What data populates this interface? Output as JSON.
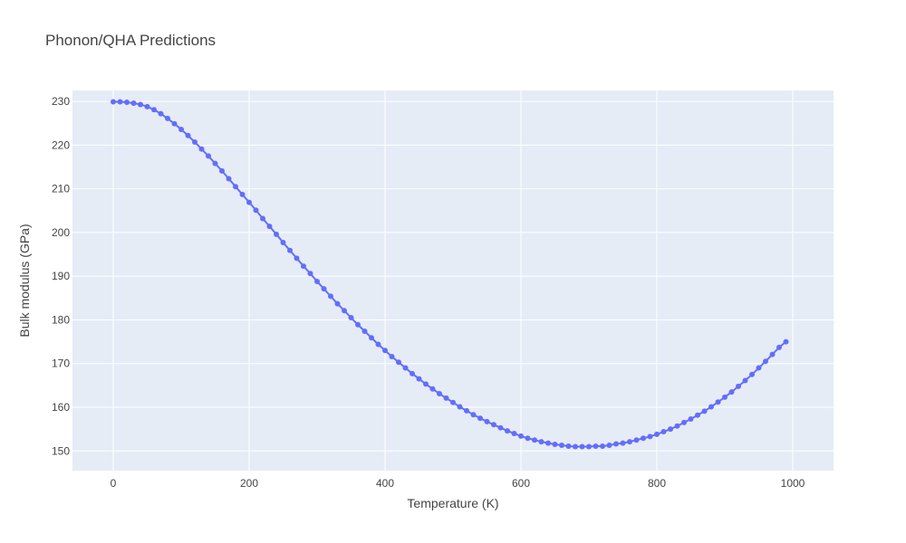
{
  "chart_data": {
    "type": "scatter",
    "mode": "lines+markers",
    "title": "Phonon/QHA Predictions",
    "xlabel": "Temperature (K)",
    "ylabel": "Bulk modulus (GPa)",
    "xlim": [
      -60,
      1060
    ],
    "ylim": [
      145.5,
      232.5
    ],
    "xticks": [
      0,
      200,
      400,
      600,
      800,
      1000
    ],
    "yticks": [
      150,
      160,
      170,
      180,
      190,
      200,
      210,
      220,
      230
    ],
    "grid": true,
    "colors": {
      "background": "#e5ecf6",
      "grid": "#ffffff",
      "series": "#636efa"
    },
    "series": [
      {
        "x": [
          0,
          10,
          20,
          30,
          40,
          50,
          60,
          70,
          80,
          90,
          100,
          110,
          120,
          130,
          140,
          150,
          160,
          170,
          180,
          190,
          200,
          210,
          220,
          230,
          240,
          250,
          260,
          270,
          280,
          290,
          300,
          310,
          320,
          330,
          340,
          350,
          360,
          370,
          380,
          390,
          400,
          410,
          420,
          430,
          440,
          450,
          460,
          470,
          480,
          490,
          500,
          510,
          520,
          530,
          540,
          550,
          560,
          570,
          580,
          590,
          600,
          610,
          620,
          630,
          640,
          650,
          660,
          670,
          680,
          690,
          700,
          710,
          720,
          730,
          740,
          750,
          760,
          770,
          780,
          790,
          800,
          810,
          820,
          830,
          840,
          850,
          860,
          870,
          880,
          890,
          900,
          910,
          920,
          930,
          940,
          950,
          960,
          970,
          980,
          990
        ],
        "y": [
          229.9,
          229.9,
          229.8,
          229.6,
          229.3,
          228.8,
          228.1,
          227.2,
          226.1,
          224.9,
          223.6,
          222.2,
          220.7,
          219.1,
          217.5,
          215.8,
          214.1,
          212.3,
          210.5,
          208.7,
          206.9,
          205.1,
          203.2,
          201.4,
          199.6,
          197.7,
          195.9,
          194.1,
          192.3,
          190.6,
          188.8,
          187.1,
          185.4,
          183.7,
          182.1,
          180.5,
          178.9,
          177.4,
          175.9,
          174.4,
          173.0,
          171.6,
          170.3,
          169.0,
          167.7,
          166.5,
          165.3,
          164.2,
          163.1,
          162.1,
          161.1,
          160.1,
          159.2,
          158.3,
          157.5,
          156.7,
          156.0,
          155.3,
          154.6,
          154.0,
          153.4,
          152.9,
          152.5,
          152.1,
          151.8,
          151.5,
          151.3,
          151.1,
          151.0,
          151.0,
          151.0,
          151.1,
          151.1,
          151.3,
          151.6,
          151.8,
          152.1,
          152.5,
          152.9,
          153.3,
          153.8,
          154.4,
          155.0,
          155.7,
          156.5,
          157.3,
          158.2,
          159.1,
          160.1,
          161.2,
          162.3,
          163.5,
          164.8,
          166.1,
          167.5,
          169.0,
          170.5,
          172.1,
          173.7,
          175.0
        ]
      }
    ]
  }
}
